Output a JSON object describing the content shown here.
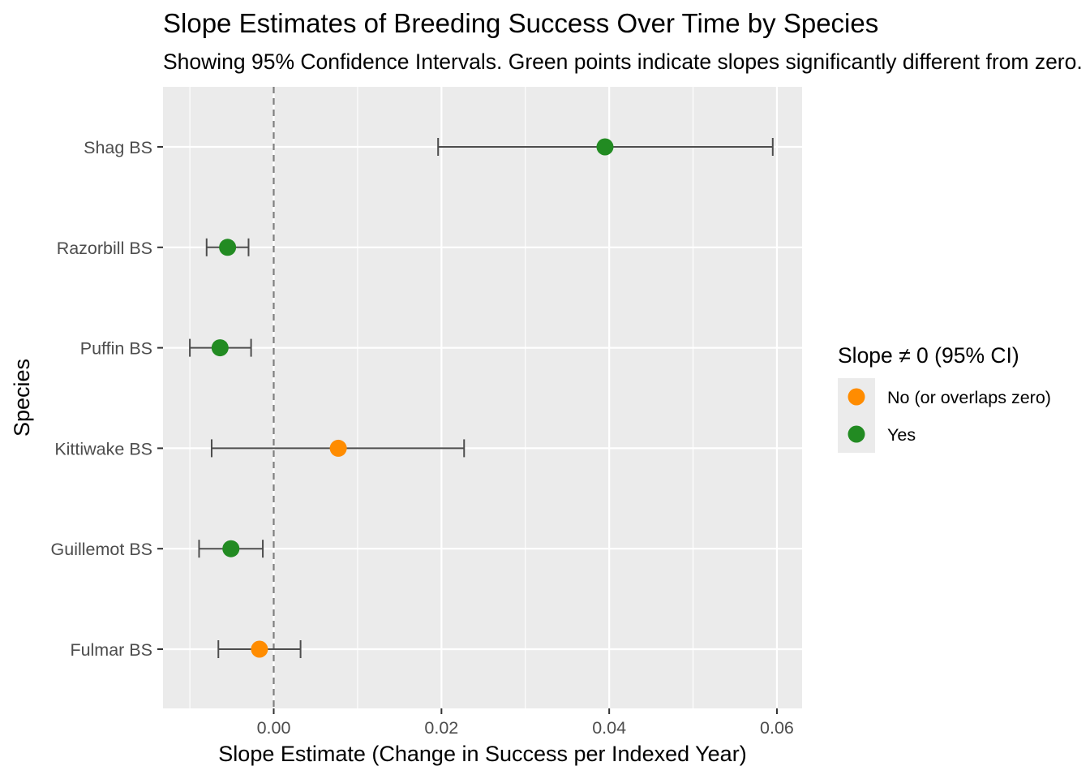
{
  "chart_data": {
    "type": "scatter",
    "title": "Slope Estimates of Breeding Success Over Time by Species",
    "subtitle": "Showing 95% Confidence Intervals. Green points indicate slopes significantly different from zero.",
    "xlabel": "Slope Estimate (Change in Success per Indexed Year)",
    "ylabel": "Species",
    "xlim": [
      -0.0132,
      0.063
    ],
    "x_ticks": [
      0.0,
      0.02,
      0.04,
      0.06
    ],
    "x_tick_labels": [
      "0.00",
      "0.02",
      "0.04",
      "0.06"
    ],
    "reference_line": {
      "x": 0,
      "style": "dashed"
    },
    "grid": true,
    "categories": [
      "Shag BS",
      "Razorbill BS",
      "Puffin BS",
      "Kittiwake BS",
      "Guillemot BS",
      "Fulmar BS"
    ],
    "points": [
      {
        "species": "Shag BS",
        "estimate": 0.0395,
        "ci_low": 0.0196,
        "ci_high": 0.0595,
        "significant": "Yes"
      },
      {
        "species": "Razorbill BS",
        "estimate": -0.0055,
        "ci_low": -0.008,
        "ci_high": -0.003,
        "significant": "Yes"
      },
      {
        "species": "Puffin BS",
        "estimate": -0.0064,
        "ci_low": -0.01,
        "ci_high": -0.0027,
        "significant": "Yes"
      },
      {
        "species": "Kittiwake BS",
        "estimate": 0.0077,
        "ci_low": -0.0074,
        "ci_high": 0.0227,
        "significant": "No (or overlaps zero)"
      },
      {
        "species": "Guillemot BS",
        "estimate": -0.0051,
        "ci_low": -0.0089,
        "ci_high": -0.0013,
        "significant": "Yes"
      },
      {
        "species": "Fulmar BS",
        "estimate": -0.0017,
        "ci_low": -0.0066,
        "ci_high": 0.0032,
        "significant": "No (or overlaps zero)"
      }
    ],
    "legend": {
      "title": "Slope ≠ 0 (95% CI)",
      "placement": "right",
      "items": [
        {
          "label": "No (or overlaps zero)",
          "color": "#ff8c00"
        },
        {
          "label": "Yes",
          "color": "#228b22"
        }
      ]
    },
    "colors": {
      "No (or overlaps zero)": "#ff8c00",
      "Yes": "#228b22",
      "panel_background": "#ebebeb",
      "grid": "#ffffff",
      "errorbar": "#4d4d4d",
      "reference_line": "#7f7f7f"
    }
  }
}
